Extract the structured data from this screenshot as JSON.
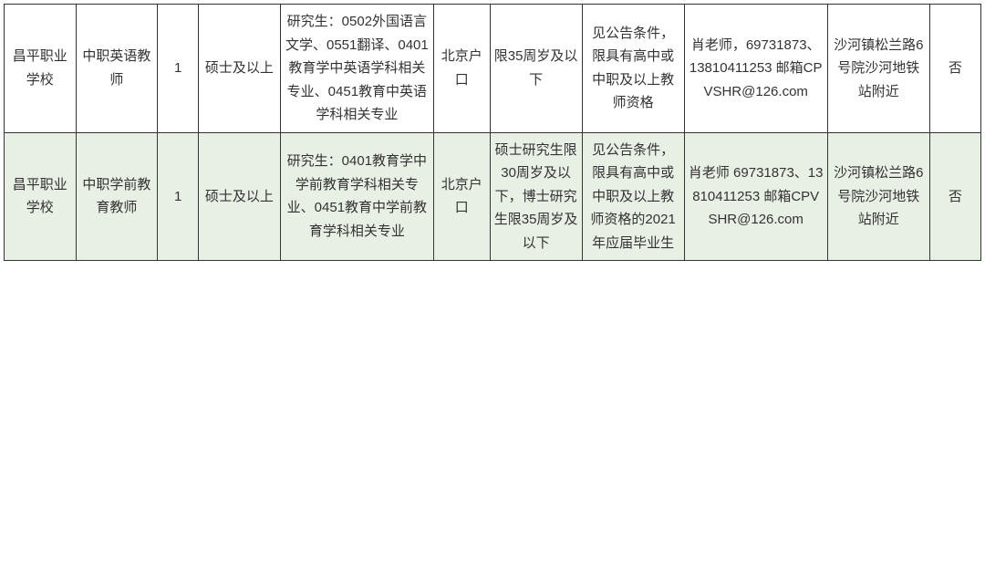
{
  "table": {
    "background_odd": "#ffffff",
    "background_even": "#e8efe4",
    "border_color": "#333333",
    "text_color": "#333333",
    "font_size": 15,
    "column_widths_pct": [
      7,
      8,
      4,
      8,
      15,
      5.5,
      9,
      10,
      14,
      10,
      5
    ],
    "rows": [
      {
        "cells": [
          "昌平职业学校",
          "中职英语教师",
          "1",
          "硕士及以上",
          "研究生：0502外国语言文学、0551翻译、0401教育学中英语学科相关专业、0451教育中英语学科相关专业",
          "北京户口",
          "限35周岁及以下",
          "见公告条件，限具有高中或中职及以上教师资格",
          "肖老师，69731873、13810411253 邮箱CPVSHR@126.com",
          "沙河镇松兰路6号院沙河地铁站附近",
          "否"
        ]
      },
      {
        "cells": [
          "昌平职业学校",
          "中职学前教育教师",
          "1",
          "硕士及以上",
          "研究生：0401教育学中学前教育学科相关专业、0451教育中学前教育学科相关专业",
          "北京户口",
          "硕士研究生限30周岁及以下，博士研究生限35周岁及以下",
          "见公告条件，限具有高中或中职及以上教师资格的2021年应届毕业生",
          "肖老师 69731873、13810411253 邮箱CPVSHR@126.com",
          "沙河镇松兰路6号院沙河地铁站附近",
          "否"
        ]
      }
    ]
  }
}
